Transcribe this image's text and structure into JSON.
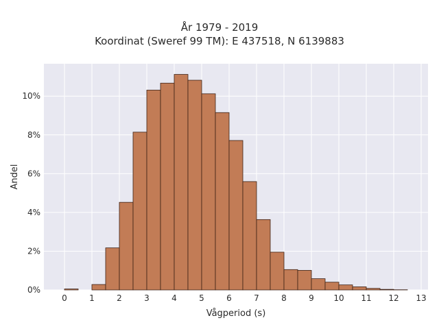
{
  "chart_data": {
    "type": "bar",
    "title_lines": [
      "År 1979 - 2019",
      "Koordinat (Sweref 99 TM): E 437518, N 6139883"
    ],
    "xlabel": "Vågperiod (s)",
    "ylabel": "Andel",
    "bin_width": 0.5,
    "bin_starts": [
      0,
      0.5,
      1,
      1.5,
      2,
      2.5,
      3,
      3.5,
      4,
      4.5,
      5,
      5.5,
      6,
      6.5,
      7,
      7.5,
      8,
      8.5,
      9,
      9.5,
      10,
      10.5,
      11,
      11.5,
      12,
      12.5
    ],
    "values": [
      0.0005,
      0,
      0.0028,
      0.0217,
      0.0452,
      0.0814,
      0.1031,
      0.1067,
      0.1112,
      0.1082,
      0.1012,
      0.0915,
      0.0771,
      0.0559,
      0.0363,
      0.0195,
      0.0105,
      0.0101,
      0.0058,
      0.004,
      0.0026,
      0.0016,
      0.0008,
      0.0003,
      0.0001,
      0
    ],
    "x_ticks": [
      0,
      1,
      2,
      3,
      4,
      5,
      6,
      7,
      8,
      9,
      10,
      11,
      12,
      13
    ],
    "y_ticks": [
      0,
      0.02,
      0.04,
      0.06,
      0.08,
      0.1
    ],
    "y_tick_labels": [
      "0%",
      "2%",
      "4%",
      "6%",
      "8%",
      "10%"
    ],
    "xlim": [
      -0.75,
      13.25
    ],
    "ylim": [
      0,
      0.1167
    ],
    "grid": true,
    "colors": {
      "bar_fill": "#c27c56",
      "bar_stroke": "#3d2216",
      "plot_bg": "#e8e8f1",
      "grid": "#ffffff"
    }
  }
}
